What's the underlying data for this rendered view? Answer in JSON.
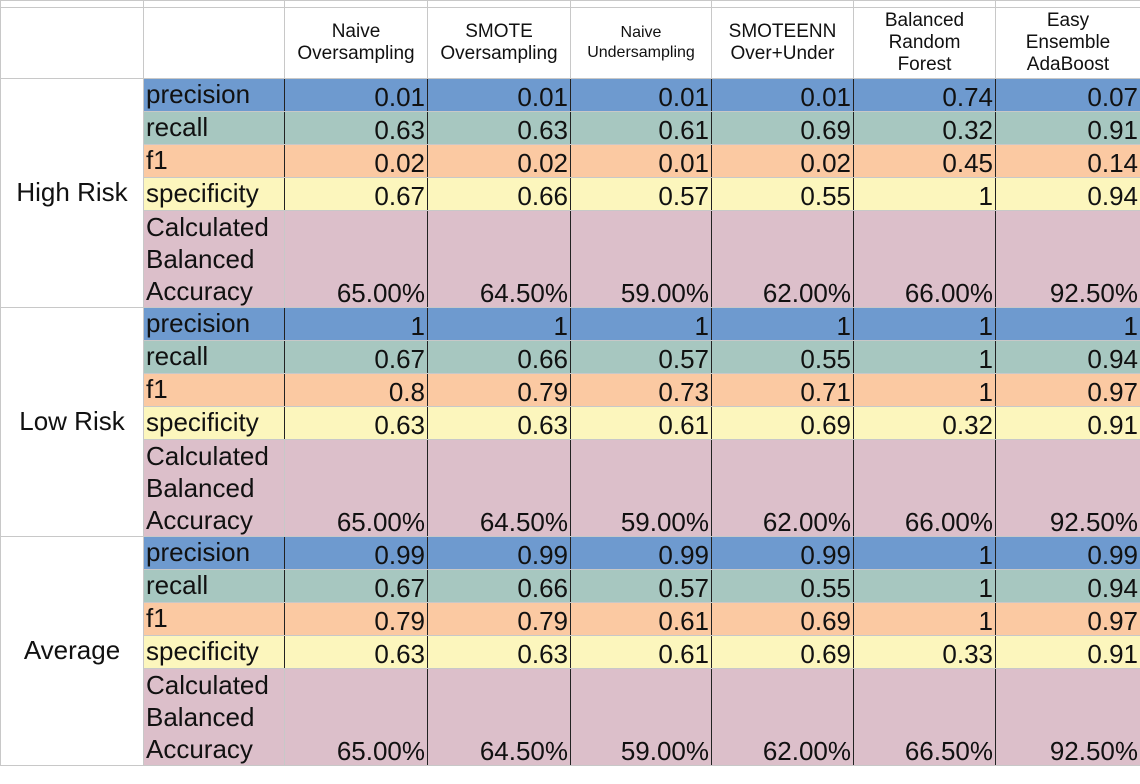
{
  "columns": [
    "Naive\nOversampling",
    "SMOTE\nOversampling",
    "Naive\nUndersampling",
    "SMOTEENN\nOver+Under",
    "Balanced\nRandom\nForest",
    "Easy\nEnsemble\nAdaBoost"
  ],
  "groups": [
    {
      "label": "High Risk",
      "rows": {
        "precision": [
          "0.01",
          "0.01",
          "0.01",
          "0.01",
          "0.74",
          "0.07"
        ],
        "recall": [
          "0.63",
          "0.63",
          "0.61",
          "0.69",
          "0.32",
          "0.91"
        ],
        "f1": [
          "0.02",
          "0.02",
          "0.01",
          "0.02",
          "0.45",
          "0.14"
        ],
        "specificity": [
          "0.67",
          "0.66",
          "0.57",
          "0.55",
          "1",
          "0.94"
        ],
        "balanced": [
          "65.00%",
          "64.50%",
          "59.00%",
          "62.00%",
          "66.00%",
          "92.50%"
        ]
      }
    },
    {
      "label": "Low Risk",
      "rows": {
        "precision": [
          "1",
          "1",
          "1",
          "1",
          "1",
          "1"
        ],
        "recall": [
          "0.67",
          "0.66",
          "0.57",
          "0.55",
          "1",
          "0.94"
        ],
        "f1": [
          "0.8",
          "0.79",
          "0.73",
          "0.71",
          "1",
          "0.97"
        ],
        "specificity": [
          "0.63",
          "0.63",
          "0.61",
          "0.69",
          "0.32",
          "0.91"
        ],
        "balanced": [
          "65.00%",
          "64.50%",
          "59.00%",
          "62.00%",
          "66.00%",
          "92.50%"
        ]
      }
    },
    {
      "label": "Average",
      "rows": {
        "precision": [
          "0.99",
          "0.99",
          "0.99",
          "0.99",
          "1",
          "0.99"
        ],
        "recall": [
          "0.67",
          "0.66",
          "0.57",
          "0.55",
          "1",
          "0.94"
        ],
        "f1": [
          "0.79",
          "0.79",
          "0.61",
          "0.69",
          "1",
          "0.97"
        ],
        "specificity": [
          "0.63",
          "0.63",
          "0.61",
          "0.69",
          "0.33",
          "0.91"
        ],
        "balanced": [
          "65.00%",
          "64.50%",
          "59.00%",
          "62.00%",
          "66.50%",
          "92.50%"
        ]
      }
    }
  ],
  "metric_labels": {
    "precision": "precision",
    "recall": "recall",
    "f1": "f1",
    "specificity": "specificity",
    "balanced": "Calculated\nBalanced\nAccuracy"
  },
  "colors": {
    "precision": "#6e9acf",
    "recall": "#a7c7c0",
    "f1": "#fbc9a2",
    "specificity": "#fcf6bd",
    "balanced": "#dcbfca"
  }
}
